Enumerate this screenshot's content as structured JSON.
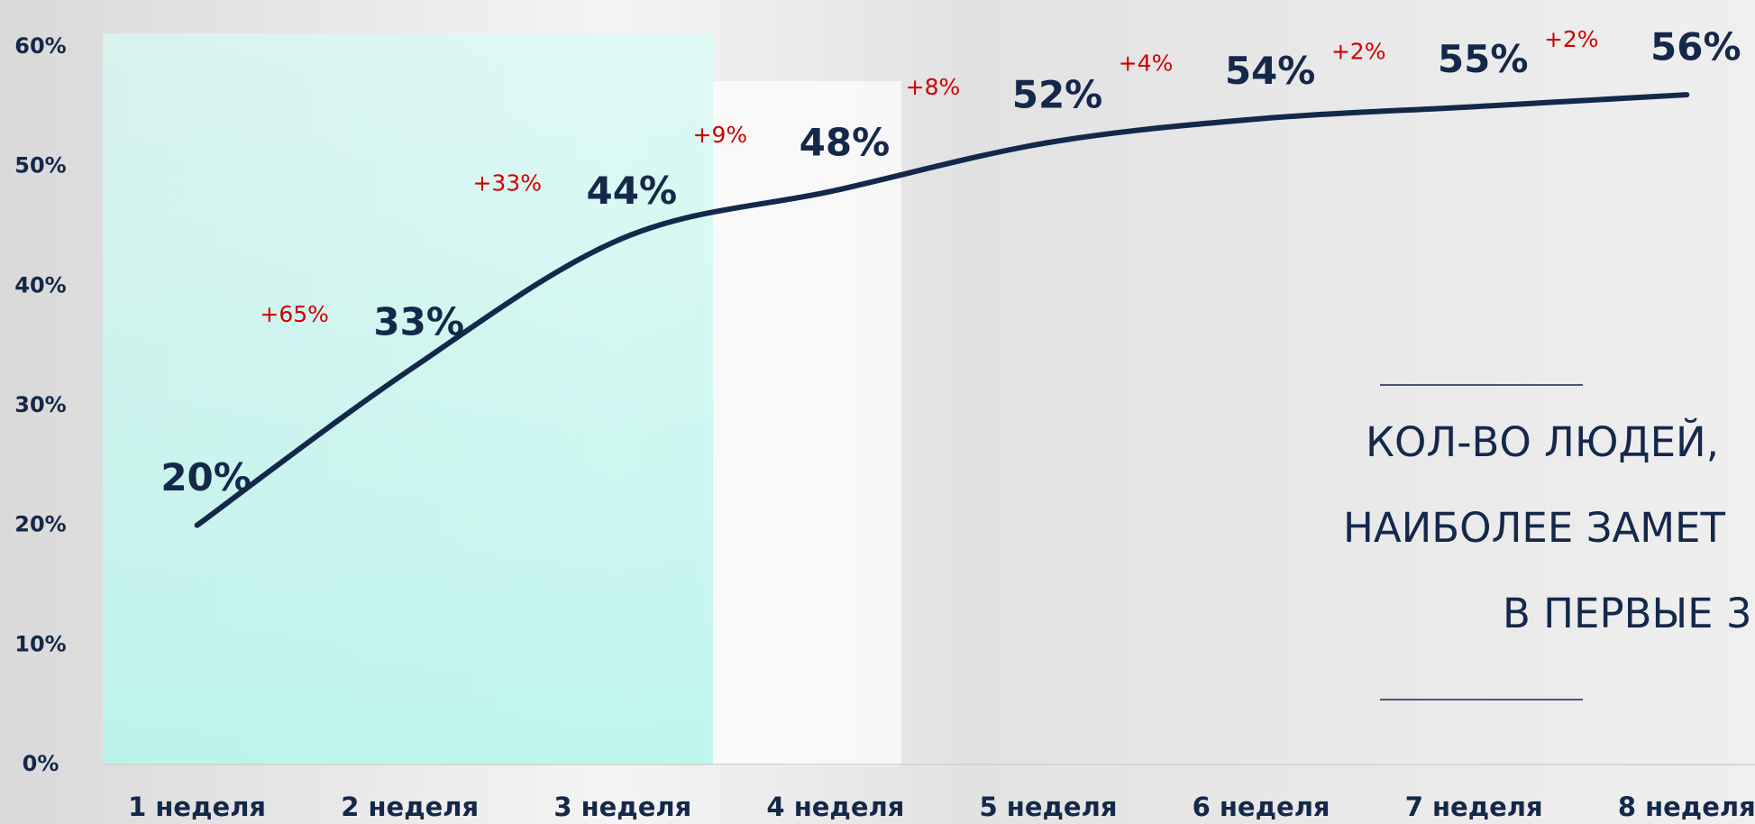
{
  "chart_data": {
    "type": "line",
    "categories": [
      "1 неделя",
      "2 неделя",
      "3 неделя",
      "4 неделя",
      "5 неделя",
      "6 неделя",
      "7 неделя",
      "8 неделя"
    ],
    "values": [
      20,
      33,
      44,
      48,
      52,
      54,
      55,
      56
    ],
    "value_labels": [
      "20%",
      "33%",
      "44%",
      "48%",
      "52%",
      "54%",
      "55%",
      "56%"
    ],
    "annotations": [
      "+65%",
      "+33%",
      "+9%",
      "+8%",
      "+4%",
      "+2%",
      "+2%"
    ],
    "color": "#14284a",
    "ylim": [
      0,
      60
    ],
    "yticks": [
      {
        "value": 0,
        "label": "0%"
      },
      {
        "value": 10,
        "label": "10%"
      },
      {
        "value": 20,
        "label": "20%"
      },
      {
        "value": 30,
        "label": "30%"
      },
      {
        "value": 40,
        "label": "40%"
      },
      {
        "value": 50,
        "label": "50%"
      },
      {
        "value": 60,
        "label": "60%"
      }
    ],
    "title": [
      "КОЛ-ВО ЛЮДЕЙ,",
      "НАИБОЛЕЕ ЗАМЕТ",
      "В ПЕРВЫЕ 3"
    ]
  }
}
